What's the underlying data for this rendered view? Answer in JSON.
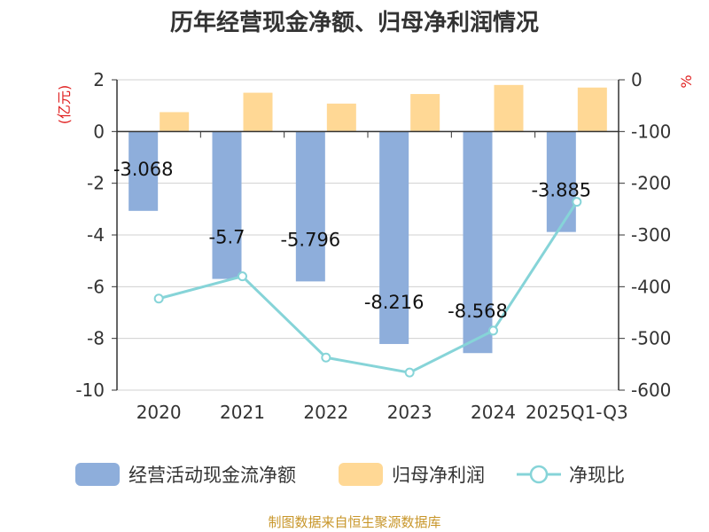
{
  "title": "历年经营现金净额、归母净利润情况",
  "source": "制图数据来自恒生聚源数据库",
  "chart_data": {
    "type": "bar",
    "categories": [
      "2020",
      "2021",
      "2022",
      "2023",
      "2024",
      "2025Q1-Q3"
    ],
    "series": [
      {
        "name": "经营活动现金流净额",
        "type": "bar",
        "axis": "left",
        "color": "#8eaedb",
        "values": [
          -3.068,
          -5.7,
          -5.796,
          -8.216,
          -8.568,
          -3.885
        ]
      },
      {
        "name": "归母净利润",
        "type": "bar",
        "axis": "left",
        "color": "#ffd895",
        "values": [
          0.75,
          1.5,
          1.08,
          1.45,
          1.8,
          1.7
        ]
      },
      {
        "name": "净现比",
        "type": "line",
        "axis": "right",
        "color": "#86d4d8",
        "values": [
          -423,
          -380,
          -537,
          -566,
          -485,
          -236
        ]
      }
    ],
    "data_labels": [
      "-3.068",
      "-5.7",
      "-5.796",
      "-8.216",
      "-8.568",
      "-3.885"
    ],
    "y_left": {
      "label": "(亿元)",
      "ylim": [
        -10,
        2
      ],
      "ticks": [
        2,
        0,
        -2,
        -4,
        -6,
        -8,
        -10
      ]
    },
    "y_right": {
      "label": "%",
      "ylim": [
        -600,
        0
      ],
      "ticks": [
        0,
        -100,
        -200,
        -300,
        -400,
        -500,
        -600
      ]
    },
    "legend_position": "bottom",
    "grid": true
  }
}
